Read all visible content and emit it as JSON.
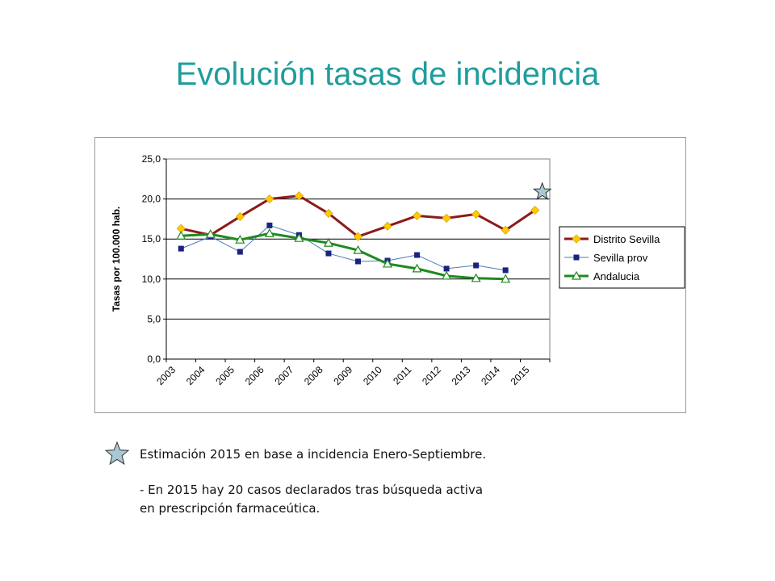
{
  "title": "Evolución tasas de incidencia",
  "chart_data": {
    "type": "line",
    "ylabel": "Tasas por 100.000 hab.",
    "xlabel": "",
    "ylim": [
      0,
      25
    ],
    "yticks": [
      "0,0",
      "5,0",
      "10,0",
      "15,0",
      "20,0",
      "25,0"
    ],
    "categories": [
      "2003",
      "2004",
      "2005",
      "2006",
      "2007",
      "2008",
      "2009",
      "2010",
      "2011",
      "2012",
      "2013",
      "2014",
      "2015"
    ],
    "grid": "horizontal",
    "legend_position": "right",
    "series": [
      {
        "name": "Distrito Sevilla",
        "color": "#8b1a1a",
        "marker": "diamond",
        "marker_color": "#ffcc00",
        "values": [
          16.3,
          15.5,
          17.8,
          20.0,
          20.4,
          18.2,
          15.3,
          16.6,
          17.9,
          17.6,
          18.1,
          16.1,
          18.6
        ]
      },
      {
        "name": "Sevilla prov",
        "color": "#4a7ab8",
        "marker": "square",
        "marker_color": "#1a237e",
        "values": [
          13.8,
          15.3,
          13.4,
          16.7,
          15.5,
          13.2,
          12.2,
          12.3,
          13.0,
          11.3,
          11.7,
          11.1,
          null
        ]
      },
      {
        "name": "Andalucia",
        "color": "#1e8a1e",
        "marker": "triangle",
        "marker_color": "#ffffff",
        "values": [
          15.4,
          15.6,
          14.9,
          15.7,
          15.1,
          14.5,
          13.6,
          11.9,
          11.3,
          10.4,
          10.1,
          10.0,
          null
        ]
      }
    ],
    "annotation": {
      "marker": "star",
      "color": "#a9c8d4",
      "category": "2015",
      "value": 20.9
    }
  },
  "notes": {
    "line1": "Estimación 2015 en base a incidencia Enero-Septiembre.",
    "line2": "- En 2015 hay 20 casos declarados tras búsqueda activa",
    "line3": "en prescripción farmaceútica."
  },
  "star_icon_color": "#a9c8d4"
}
